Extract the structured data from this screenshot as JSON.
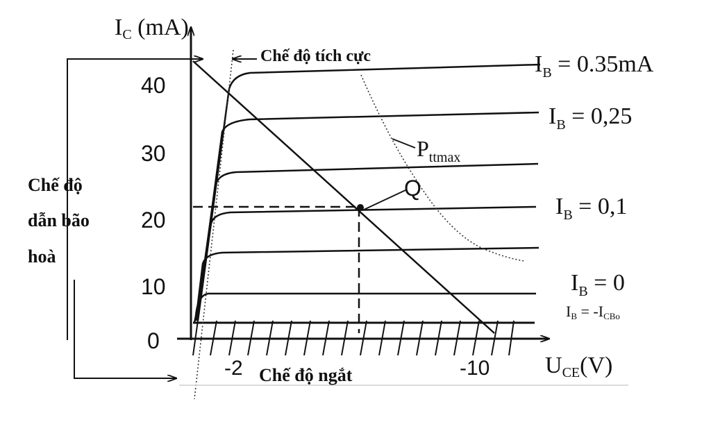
{
  "axes": {
    "y_label_main": "I",
    "y_label_sub": "C",
    "y_label_unit": " (mA)",
    "x_label_main": "U",
    "x_label_sub": "CE",
    "x_label_unit": "(V)",
    "y_ticks": [
      "40",
      "30",
      "20",
      "10",
      "0"
    ],
    "x_ticks": [
      "-2",
      "-10"
    ]
  },
  "regions": {
    "active": "Chế độ tích cực",
    "saturation_line1": "Chế độ",
    "saturation_line2": "dẫn bão",
    "saturation_line3": "hoà",
    "cutoff": "Chế độ ngắt"
  },
  "curve_labels": {
    "ib1_main": "I",
    "ib1_sub": "B",
    "ib1_value": " = 0.35mA",
    "ib2_main": "I",
    "ib2_sub": "B",
    "ib2_value": " = 0,25",
    "ib3_main": "I",
    "ib3_sub": "B",
    "ib3_value": " = 0,1",
    "ib4_main": "I",
    "ib4_sub": "B",
    "ib4_value": " = 0",
    "ib5_main": "I",
    "ib5_sub": "B",
    "ib5_eq": " = -I",
    "ib5_sub2": "CBo"
  },
  "annotations": {
    "pmax_main": "P",
    "pmax_sub": "ttmax",
    "q_point": "Q"
  }
}
